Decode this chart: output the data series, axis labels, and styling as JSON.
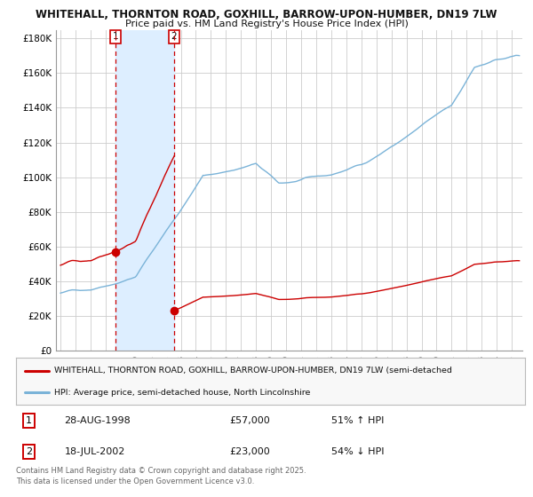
{
  "title_line1": "WHITEHALL, THORNTON ROAD, GOXHILL, BARROW-UPON-HUMBER, DN19 7LW",
  "title_line2": "Price paid vs. HM Land Registry's House Price Index (HPI)",
  "background_color": "#ffffff",
  "plot_bg_color": "#ffffff",
  "grid_color": "#cccccc",
  "hpi_color": "#7ab3d8",
  "price_color": "#cc0000",
  "sale1_date_num": 1998.65,
  "sale1_price": 57000,
  "sale2_date_num": 2002.55,
  "sale2_price": 23000,
  "ylim": [
    0,
    185000
  ],
  "yticks": [
    0,
    20000,
    40000,
    60000,
    80000,
    100000,
    120000,
    140000,
    160000,
    180000
  ],
  "xlim_start": 1994.7,
  "xlim_end": 2025.7,
  "xticks": [
    1995,
    1996,
    1997,
    1998,
    1999,
    2000,
    2001,
    2002,
    2003,
    2004,
    2005,
    2006,
    2007,
    2008,
    2009,
    2010,
    2011,
    2012,
    2013,
    2014,
    2015,
    2016,
    2017,
    2018,
    2019,
    2020,
    2021,
    2022,
    2023,
    2024,
    2025
  ],
  "legend_entry1": "WHITEHALL, THORNTON ROAD, GOXHILL, BARROW-UPON-HUMBER, DN19 7LW (semi-detached",
  "legend_entry2": "HPI: Average price, semi-detached house, North Lincolnshire",
  "table_row1": [
    "1",
    "28-AUG-1998",
    "£57,000",
    "51% ↑ HPI"
  ],
  "table_row2": [
    "2",
    "18-JUL-2002",
    "£23,000",
    "54% ↓ HPI"
  ],
  "footnote": "Contains HM Land Registry data © Crown copyright and database right 2025.\nThis data is licensed under the Open Government Licence v3.0.",
  "shade_color": "#ddeeff",
  "legend_bg": "#f8f8f8",
  "sale1_pct_above_hpi": 1.51,
  "sale2_pct_below_hpi": 0.46
}
